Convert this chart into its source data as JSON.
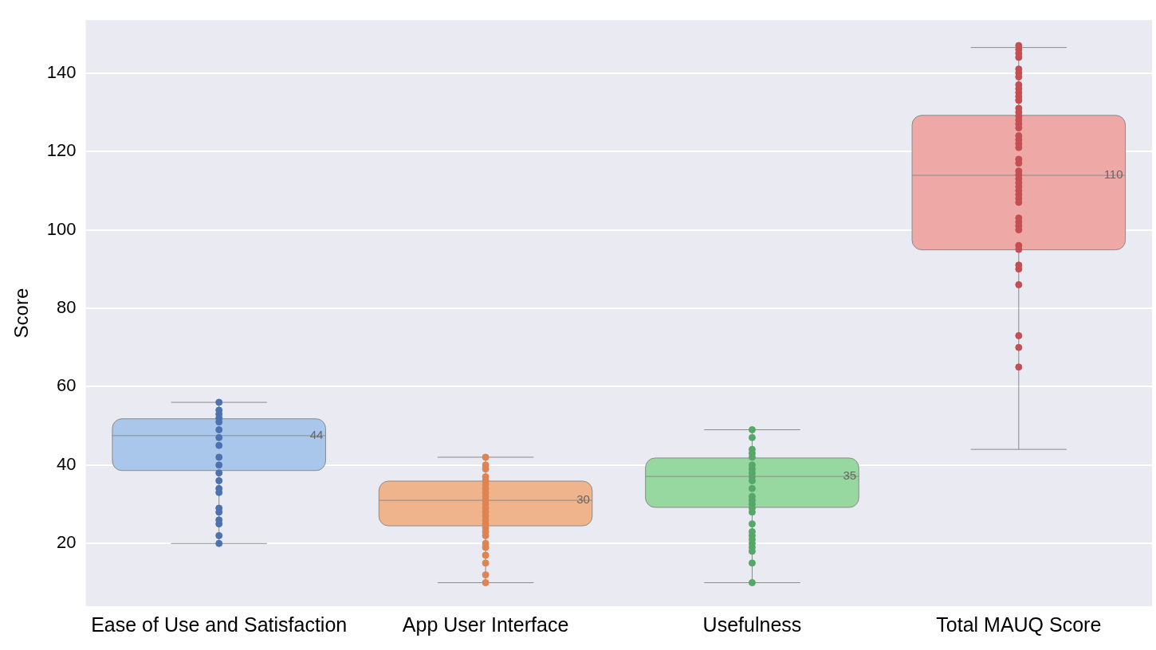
{
  "chart_data": {
    "type": "box",
    "ylabel": "Score",
    "categories": [
      "Ease of Use and Satisfaction",
      "App User Interface",
      "Usefulness",
      "Total MAUQ Score"
    ],
    "colors": [
      "#a9c7ea",
      "#f0b48c",
      "#97d8a0",
      "#eea8a6"
    ],
    "boxes": [
      {
        "low": 20,
        "q1": 38.6,
        "median": 47.5,
        "q3": 51.8,
        "high": 56
      },
      {
        "low": 10,
        "q1": 24.5,
        "median": 31,
        "q3": 35.9,
        "high": 42
      },
      {
        "low": 10,
        "q1": 29.2,
        "median": 37.1,
        "q3": 41.8,
        "high": 49
      },
      {
        "low": 44,
        "q1": 94.9,
        "median": 113.9,
        "q3": 129.2,
        "high": 146.5
      }
    ],
    "ylim": [
      4,
      153.5
    ],
    "yticks": [
      20,
      40,
      60,
      80,
      100,
      120,
      140
    ],
    "grid": "y",
    "legend": false,
    "marker": "circle",
    "annotations": [
      "44",
      "30",
      "35",
      "110"
    ],
    "series": [
      {
        "type": "scatter",
        "color": "#4c72b0",
        "x": [
          "Ease of Use and Satisfaction",
          "Ease of Use and Satisfaction",
          "Ease of Use and Satisfaction",
          "Ease of Use and Satisfaction",
          "Ease of Use and Satisfaction",
          "Ease of Use and Satisfaction",
          "Ease of Use and Satisfaction",
          "Ease of Use and Satisfaction",
          "Ease of Use and Satisfaction",
          "Ease of Use and Satisfaction",
          "Ease of Use and Satisfaction",
          "Ease of Use and Satisfaction",
          "Ease of Use and Satisfaction",
          "Ease of Use and Satisfaction",
          "Ease of Use and Satisfaction",
          "Ease of Use and Satisfaction",
          "Ease of Use and Satisfaction",
          "Ease of Use and Satisfaction",
          "Ease of Use and Satisfaction",
          "Ease of Use and Satisfaction"
        ],
        "values": [
          56,
          54,
          53,
          52,
          51,
          49,
          47,
          45,
          42,
          40,
          38,
          36,
          34,
          33,
          29,
          28,
          26,
          25,
          22,
          20
        ]
      },
      {
        "type": "scatter",
        "color": "#dd8452",
        "x": [
          "App User Interface",
          "App User Interface",
          "App User Interface",
          "App User Interface",
          "App User Interface",
          "App User Interface",
          "App User Interface",
          "App User Interface",
          "App User Interface",
          "App User Interface",
          "App User Interface",
          "App User Interface",
          "App User Interface",
          "App User Interface",
          "App User Interface",
          "App User Interface",
          "App User Interface",
          "App User Interface",
          "App User Interface",
          "App User Interface",
          "App User Interface",
          "App User Interface",
          "App User Interface",
          "App User Interface",
          "App User Interface"
        ],
        "values": [
          42,
          40,
          39,
          37,
          36,
          35,
          34,
          33,
          32,
          31,
          30,
          29,
          28,
          27,
          26,
          25,
          24,
          23,
          22,
          20,
          19,
          17,
          15,
          12,
          10
        ]
      },
      {
        "type": "scatter",
        "color": "#55a868",
        "x": [
          "Usefulness",
          "Usefulness",
          "Usefulness",
          "Usefulness",
          "Usefulness",
          "Usefulness",
          "Usefulness",
          "Usefulness",
          "Usefulness",
          "Usefulness",
          "Usefulness",
          "Usefulness",
          "Usefulness",
          "Usefulness",
          "Usefulness",
          "Usefulness",
          "Usefulness",
          "Usefulness",
          "Usefulness",
          "Usefulness",
          "Usefulness",
          "Usefulness",
          "Usefulness",
          "Usefulness",
          "Usefulness"
        ],
        "values": [
          49,
          47,
          44,
          43,
          42,
          40,
          39,
          38,
          37,
          36,
          34,
          32,
          31,
          30,
          29,
          28,
          25,
          23,
          22,
          21,
          20,
          19,
          18,
          15,
          10
        ]
      },
      {
        "type": "scatter",
        "color": "#c44e52",
        "x": [
          "Total MAUQ Score",
          "Total MAUQ Score",
          "Total MAUQ Score",
          "Total MAUQ Score",
          "Total MAUQ Score",
          "Total MAUQ Score",
          "Total MAUQ Score",
          "Total MAUQ Score",
          "Total MAUQ Score",
          "Total MAUQ Score",
          "Total MAUQ Score",
          "Total MAUQ Score",
          "Total MAUQ Score",
          "Total MAUQ Score",
          "Total MAUQ Score",
          "Total MAUQ Score",
          "Total MAUQ Score",
          "Total MAUQ Score",
          "Total MAUQ Score",
          "Total MAUQ Score",
          "Total MAUQ Score",
          "Total MAUQ Score",
          "Total MAUQ Score",
          "Total MAUQ Score",
          "Total MAUQ Score",
          "Total MAUQ Score",
          "Total MAUQ Score",
          "Total MAUQ Score",
          "Total MAUQ Score",
          "Total MAUQ Score",
          "Total MAUQ Score",
          "Total MAUQ Score",
          "Total MAUQ Score",
          "Total MAUQ Score",
          "Total MAUQ Score",
          "Total MAUQ Score",
          "Total MAUQ Score",
          "Total MAUQ Score",
          "Total MAUQ Score",
          "Total MAUQ Score",
          "Total MAUQ Score",
          "Total MAUQ Score",
          "Total MAUQ Score",
          "Total MAUQ Score",
          "Total MAUQ Score"
        ],
        "values": [
          147,
          146,
          145,
          144,
          141,
          140,
          139,
          137,
          136,
          135,
          134,
          133,
          131,
          130,
          129,
          128,
          127,
          126,
          124,
          123,
          122,
          121,
          118,
          117,
          115,
          114,
          113,
          112,
          111,
          110,
          109,
          108,
          107,
          103,
          102,
          101,
          100,
          96,
          95,
          91,
          90,
          86,
          73,
          70,
          65
        ]
      }
    ]
  }
}
